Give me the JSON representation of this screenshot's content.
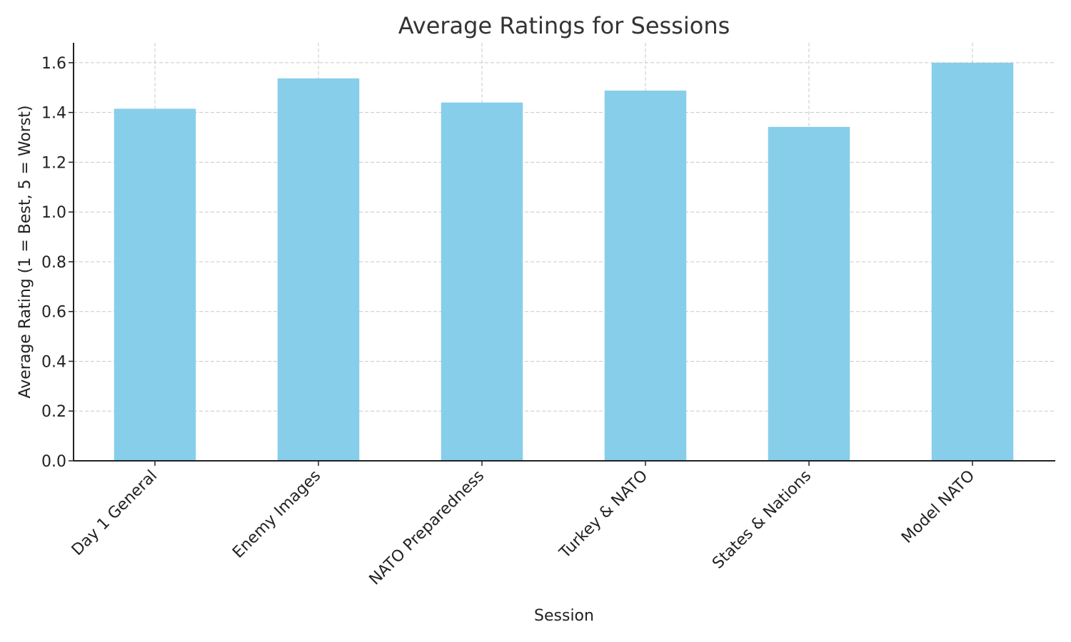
{
  "chart_data": {
    "type": "bar",
    "title": "Average Ratings for Sessions",
    "xlabel": "Session",
    "ylabel": "Average Rating (1 = Best, 5 = Worst)",
    "categories": [
      "Day 1 General",
      "Enemy Images",
      "NATO Preparedness",
      "Turkey & NATO",
      "States & Nations",
      "Model NATO"
    ],
    "values": [
      1.415,
      1.537,
      1.44,
      1.488,
      1.342,
      1.6
    ],
    "ylim": [
      0,
      1.68
    ],
    "yticks": [
      "0.0",
      "0.2",
      "0.4",
      "0.6",
      "0.8",
      "1.0",
      "1.2",
      "1.4",
      "1.6"
    ],
    "grid": true,
    "bar_color": "#87ceeb"
  }
}
